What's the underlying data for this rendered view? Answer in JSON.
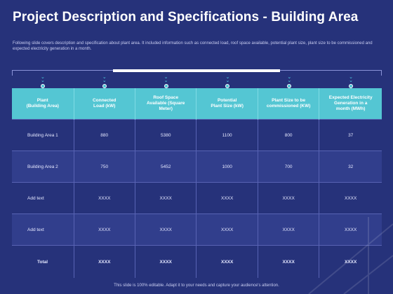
{
  "title": "Project Description and Specifications - Building Area",
  "description": "Following slide covers description and specification about plant area. It included information such as connected load, roof space available, potential plant size, plant size to be commissioned and expected electricity generation in a month.",
  "table": {
    "headers": [
      "Plant\n(Building Area)",
      "Connected\nLoad (kW)",
      "Roof Space\nAvailable (Square\nMeter)",
      "Potential\nPlant Size (kW)",
      "Plant Size to be\ncommissioned (KW)",
      "Expected Electricity\nGeneration in a\nmonth (MWh)"
    ],
    "rows": [
      [
        "Building Area 1",
        "880",
        "5380",
        "1100",
        "800",
        "37"
      ],
      [
        "Building Area 2",
        "750",
        "5452",
        "1000",
        "700",
        "32"
      ],
      [
        "Add text",
        "XXXX",
        "XXXX",
        "XXXX",
        "XXXX",
        "XXXX"
      ],
      [
        "Add text",
        "XXXX",
        "XXXX",
        "XXXX",
        "XXXX",
        "XXXX"
      ],
      [
        "Total",
        "XXXX",
        "XXXX",
        "XXXX",
        "XXXX",
        "XXXX"
      ]
    ]
  },
  "footer": "This slide is 100% editable. Adapt it to your needs and capture your audience's attention.",
  "colors": {
    "background": "#26327a",
    "header": "#54c6d3",
    "accent": "#4ed6e6"
  },
  "icons": {
    "column_marker": "double-chevron-down-icon"
  }
}
